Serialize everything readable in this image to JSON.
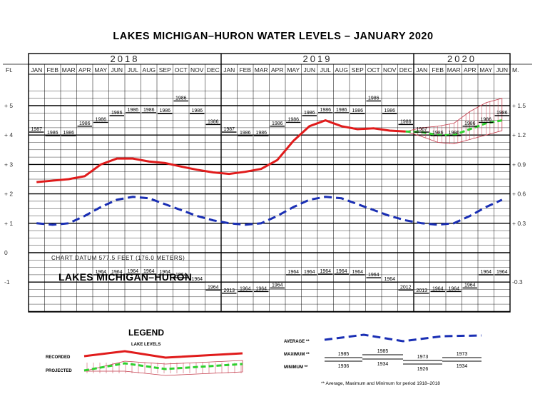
{
  "colors": {
    "recorded": "#e01b1b",
    "projected": "#2fd12f",
    "average": "#1a2fb4",
    "hatch": "#c43a4a"
  },
  "chart_data": {
    "type": "line",
    "title": "LAKES MICHIGAN–HURON  WATER  LEVELS – JANUARY 2020",
    "years": [
      {
        "label": "2018",
        "start": 0,
        "months": 12
      },
      {
        "label": "2019",
        "start": 12,
        "months": 12
      },
      {
        "label": "2020",
        "start": 24,
        "months": 6
      }
    ],
    "months": [
      "JAN",
      "FEB",
      "MAR",
      "APR",
      "MAY",
      "JUN",
      "JUL",
      "AUG",
      "SEP",
      "OCT",
      "NOV",
      "DEC",
      "JAN",
      "FEB",
      "MAR",
      "APR",
      "MAY",
      "JUN",
      "JUL",
      "AUG",
      "SEP",
      "OCT",
      "NOV",
      "DEC",
      "JAN",
      "FEB",
      "MAR",
      "APR",
      "MAY",
      "JUN"
    ],
    "left_axis": {
      "label": "Ft.",
      "ticks": [
        {
          "v": 0.5,
          "t": "+ 5"
        },
        {
          "v": 0.4,
          "t": "+ 4"
        },
        {
          "v": 0.3,
          "t": "+ 3"
        },
        {
          "v": 0.2,
          "t": "+ 2"
        },
        {
          "v": 0.1,
          "t": "+ 1"
        },
        {
          "v": 0.0,
          "t": "0"
        },
        {
          "v": -0.1,
          "t": "-1"
        }
      ]
    },
    "right_axis": {
      "label": "M.",
      "ticks": [
        {
          "v": 0.5,
          "t": "+ 1.5"
        },
        {
          "v": 0.4,
          "t": "+ 1.2"
        },
        {
          "v": 0.3,
          "t": "+ 0.9"
        },
        {
          "v": 0.2,
          "t": "+ 0.6"
        },
        {
          "v": 0.1,
          "t": "+ 0.3"
        },
        {
          "v": -0.1,
          "t": "-0.3"
        }
      ]
    },
    "ylim": [
      -0.2,
      0.65
    ],
    "recorded": [
      0.24,
      0.245,
      0.25,
      0.26,
      0.3,
      0.32,
      0.32,
      0.31,
      0.305,
      0.293,
      0.282,
      0.273,
      0.268,
      0.275,
      0.285,
      0.315,
      0.38,
      0.43,
      0.45,
      0.43,
      0.42,
      0.423,
      0.415,
      0.412
    ],
    "projected": {
      "start": 23,
      "values": [
        0.412,
        0.41,
        0.4,
        0.4,
        0.42,
        0.44,
        0.45
      ],
      "upper": [
        0.412,
        0.425,
        0.43,
        0.44,
        0.48,
        0.51,
        0.525
      ],
      "lower": [
        0.412,
        0.395,
        0.375,
        0.37,
        0.385,
        0.4,
        0.415
      ]
    },
    "average": [
      0.1,
      0.095,
      0.1,
      0.125,
      0.155,
      0.18,
      0.19,
      0.185,
      0.165,
      0.145,
      0.125,
      0.11,
      0.1,
      0.095,
      0.1,
      0.125,
      0.155,
      0.18,
      0.19,
      0.185,
      0.165,
      0.145,
      0.125,
      0.11,
      0.1,
      0.095,
      0.1,
      0.125,
      0.155,
      0.18
    ],
    "maximum": {
      "values": [
        0.41,
        0.398,
        0.398,
        0.43,
        0.443,
        0.466,
        0.476,
        0.476,
        0.473,
        0.516,
        0.473,
        0.436,
        0.41,
        0.398,
        0.398,
        0.43,
        0.443,
        0.466,
        0.476,
        0.476,
        0.473,
        0.516,
        0.473,
        0.436,
        0.41,
        0.398,
        0.398,
        0.43,
        0.443,
        0.466
      ],
      "labels": [
        "1987",
        "1986",
        "1986",
        "1986",
        "1986",
        "1986",
        "1986",
        "1986",
        "1986",
        "1986",
        "1986",
        "1986",
        "1987",
        "1986",
        "1986",
        "1986",
        "1986",
        "1986",
        "1986",
        "1986",
        "1986",
        "1986",
        "1986",
        "1986",
        "1987",
        "1986",
        "1986",
        "1986",
        "1986",
        "1986"
      ]
    },
    "minimum": {
      "start": 12,
      "values": [
        -0.138,
        -0.132,
        -0.132,
        -0.12,
        -0.075,
        -0.075,
        -0.073,
        -0.073,
        -0.075,
        -0.085,
        -0.1,
        -0.127,
        -0.138,
        -0.132,
        -0.132,
        -0.12,
        -0.075,
        -0.075
      ],
      "labels": [
        "2013",
        "1964",
        "1964",
        "1964",
        "1964",
        "1964",
        "1964",
        "1964",
        "1964",
        "1964",
        "1964",
        "2012",
        "2013",
        "1964",
        "1964",
        "1964",
        "1964",
        "1964"
      ]
    },
    "minimum_2018_months": [
      4,
      5,
      6,
      7,
      8,
      9,
      10,
      11
    ],
    "minimum_2018_values": [
      -0.075,
      -0.075,
      -0.073,
      -0.073,
      -0.075,
      -0.085,
      -0.1,
      -0.127
    ],
    "minimum_2018_labels": [
      "1964",
      "1964",
      "1964",
      "1964",
      "1964",
      "1964",
      "1964",
      "1964"
    ]
  },
  "chart_labels": {
    "datum": "CHART DATUM   577.5 FEET (176.0 METERS)",
    "lake": "LAKES MICHIGAN–HURON"
  },
  "legend": {
    "title": "LEGEND",
    "lake_levels": "LAKE LEVELS",
    "recorded": "RECORDED",
    "projected": "PROJECTED",
    "average": "AVERAGE **",
    "maximum": "MAXIMUM **",
    "minimum": "MINIMUM **",
    "max_years": [
      "1985",
      "1985",
      "1973",
      "1973"
    ],
    "min_years": [
      "1936",
      "1934",
      "1926",
      "1934"
    ],
    "footnote": "** Average, Maximum and Minimum for period 1918–2018"
  }
}
